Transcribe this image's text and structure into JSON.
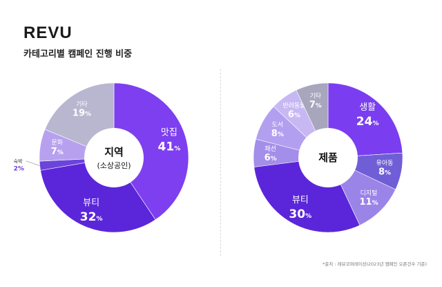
{
  "header": {
    "logo": "REVU",
    "subtitle": "카테고리별 캠페인 진행 비중"
  },
  "footer": {
    "source": "*출처 : 레뷰코퍼레이션(2023년 캠페인 오픈건수 기준)"
  },
  "chart_data": [
    {
      "type": "pie",
      "center_title": "지역",
      "center_subtitle": "(소상공인)",
      "categories": [
        "맛집",
        "뷰티",
        "숙박",
        "문화",
        "기타"
      ],
      "values": [
        41,
        32,
        2,
        7,
        19
      ],
      "labels": [
        "41",
        "32",
        "2",
        "7",
        "19"
      ],
      "unit": "%",
      "colors": [
        "#7d3ff0",
        "#5b26d9",
        "#6a44dc",
        "#b7a1ef",
        "#b9b6cf"
      ]
    },
    {
      "type": "pie",
      "center_title": "제품",
      "categories": [
        "생활",
        "유아동",
        "디지털",
        "뷰티",
        "패션",
        "도서",
        "반려동물",
        "기타"
      ],
      "values": [
        24,
        8,
        11,
        30,
        6,
        8,
        6,
        7
      ],
      "labels": [
        "24",
        "8",
        "11",
        "30",
        "6",
        "8",
        "6",
        "7"
      ],
      "unit": "%",
      "colors": [
        "#7a3ef0",
        "#6f5ed6",
        "#9b84e8",
        "#5b26d9",
        "#a38ee9",
        "#b39ff0",
        "#c7b8f3",
        "#a8a6bd"
      ]
    }
  ]
}
